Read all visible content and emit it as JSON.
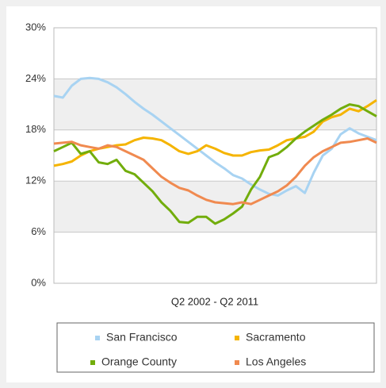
{
  "chart_data": {
    "type": "line",
    "x_label": "Q2 2002 - Q2 2011",
    "categories": [
      null,
      null,
      null,
      null,
      null,
      null,
      null,
      null,
      null,
      null,
      null,
      null,
      null,
      null,
      null,
      null,
      null,
      null,
      null,
      null,
      null,
      null,
      null,
      null,
      null,
      null,
      null,
      null,
      null,
      null,
      null,
      null,
      null,
      null,
      null,
      null,
      null
    ],
    "ylim": [
      0,
      30
    ],
    "yticks": [
      {
        "value": 0,
        "label": "0%"
      },
      {
        "value": 6,
        "label": "6%"
      },
      {
        "value": 12,
        "label": "12%"
      },
      {
        "value": 18,
        "label": "18%"
      },
      {
        "value": 24,
        "label": "24%"
      },
      {
        "value": 30,
        "label": "30%"
      }
    ],
    "grid": true,
    "legend": "bottom",
    "series": [
      {
        "name": "San Francisco",
        "color": "#a8d3f2",
        "values": [
          22.0,
          21.8,
          23.2,
          24.0,
          24.1,
          24.0,
          23.6,
          23.0,
          22.2,
          21.3,
          20.5,
          19.8,
          19.0,
          18.2,
          17.4,
          16.6,
          15.8,
          15.0,
          14.2,
          13.5,
          12.7,
          12.3,
          11.6,
          11.0,
          10.5,
          10.3,
          10.9,
          11.4,
          10.6,
          13.0,
          15.0,
          15.8,
          17.5,
          18.2,
          17.6,
          17.2,
          16.8
        ]
      },
      {
        "name": "Sacramento",
        "color": "#f5b400",
        "values": [
          13.8,
          14.0,
          14.3,
          15.0,
          15.5,
          15.8,
          16.0,
          16.2,
          16.3,
          16.8,
          17.1,
          17.0,
          16.8,
          16.2,
          15.5,
          15.2,
          15.5,
          16.2,
          15.8,
          15.3,
          15.0,
          15.0,
          15.4,
          15.6,
          15.7,
          16.2,
          16.8,
          17.0,
          17.2,
          17.8,
          19.0,
          19.5,
          19.8,
          20.5,
          20.2,
          20.8,
          21.5
        ]
      },
      {
        "name": "Orange County",
        "color": "#72ad0c",
        "values": [
          15.5,
          16.0,
          16.5,
          15.2,
          15.5,
          14.2,
          14.0,
          14.5,
          13.2,
          12.8,
          11.8,
          10.8,
          9.5,
          8.5,
          7.2,
          7.1,
          7.8,
          7.8,
          7.0,
          7.5,
          8.2,
          9.0,
          11.0,
          12.5,
          14.8,
          15.2,
          16.0,
          17.0,
          17.8,
          18.5,
          19.2,
          19.8,
          20.5,
          21.0,
          20.8,
          20.2,
          19.6
        ]
      },
      {
        "name": "Los Angeles",
        "color": "#f08a50",
        "values": [
          16.4,
          16.5,
          16.6,
          16.2,
          16.0,
          15.8,
          16.2,
          16.0,
          15.5,
          15.0,
          14.5,
          13.5,
          12.5,
          11.8,
          11.2,
          10.9,
          10.3,
          9.8,
          9.5,
          9.4,
          9.3,
          9.5,
          9.3,
          9.8,
          10.3,
          10.8,
          11.5,
          12.5,
          13.8,
          14.8,
          15.5,
          16.0,
          16.5,
          16.6,
          16.8,
          17.0,
          16.5
        ]
      }
    ]
  }
}
